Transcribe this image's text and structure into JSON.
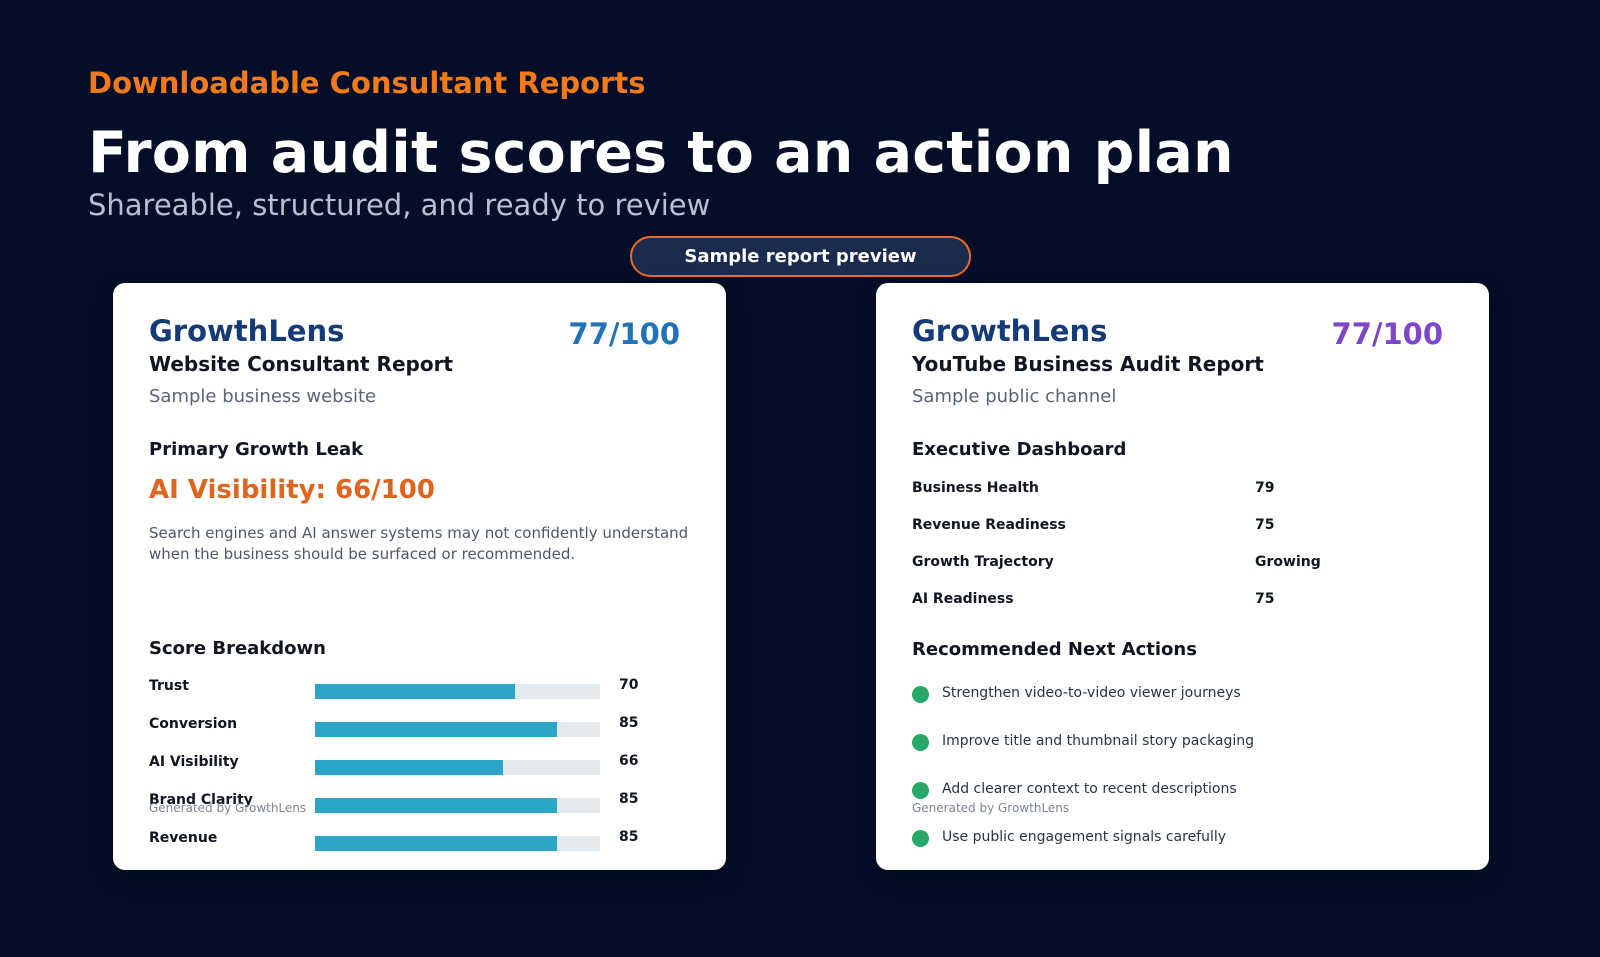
{
  "hero": {
    "eyebrow": "Downloadable Consultant Reports",
    "headline": "From audit scores to an action plan",
    "subhead": "Shareable, structured, and ready to review",
    "preview_label": "Sample report preview"
  },
  "website_report": {
    "brand": "GrowthLens",
    "score": "77/100",
    "title": "Website Consultant Report",
    "subtitle": "Sample business website",
    "leak_heading": "Primary Growth Leak",
    "leak_value": "AI Visibility: 66/100",
    "leak_description": "Search engines and AI answer systems may not confidently understand when the business should be surfaced or recommended.",
    "breakdown_heading": "Score Breakdown",
    "breakdown": [
      {
        "label": "Trust",
        "value": 70
      },
      {
        "label": "Conversion",
        "value": 85
      },
      {
        "label": "AI Visibility",
        "value": 66
      },
      {
        "label": "Brand Clarity",
        "value": 85
      },
      {
        "label": "Revenue",
        "value": 85
      }
    ],
    "footer": "Generated by GrowthLens"
  },
  "youtube_report": {
    "brand": "GrowthLens",
    "score": "77/100",
    "title": "YouTube Business Audit Report",
    "subtitle": "Sample public channel",
    "dashboard_heading": "Executive Dashboard",
    "dashboard": [
      {
        "label": "Business Health",
        "value": "79"
      },
      {
        "label": "Revenue Readiness",
        "value": "75"
      },
      {
        "label": "Growth Trajectory",
        "value": "Growing"
      },
      {
        "label": "AI Readiness",
        "value": "75"
      }
    ],
    "actions_heading": "Recommended Next Actions",
    "actions": [
      "Strengthen video-to-video viewer journeys",
      "Improve title and thumbnail story packaging",
      "Add clearer context to recent descriptions",
      "Use public engagement signals carefully"
    ],
    "footer": "Generated by GrowthLens"
  },
  "colors": {
    "background": "#040e28",
    "accent_orange": "#f27a1a",
    "brand_navy": "#143a78",
    "score_blue": "#2272b8",
    "score_purple": "#7e46c8",
    "bar_fill": "#2ba4c6",
    "action_dot": "#27a866"
  }
}
